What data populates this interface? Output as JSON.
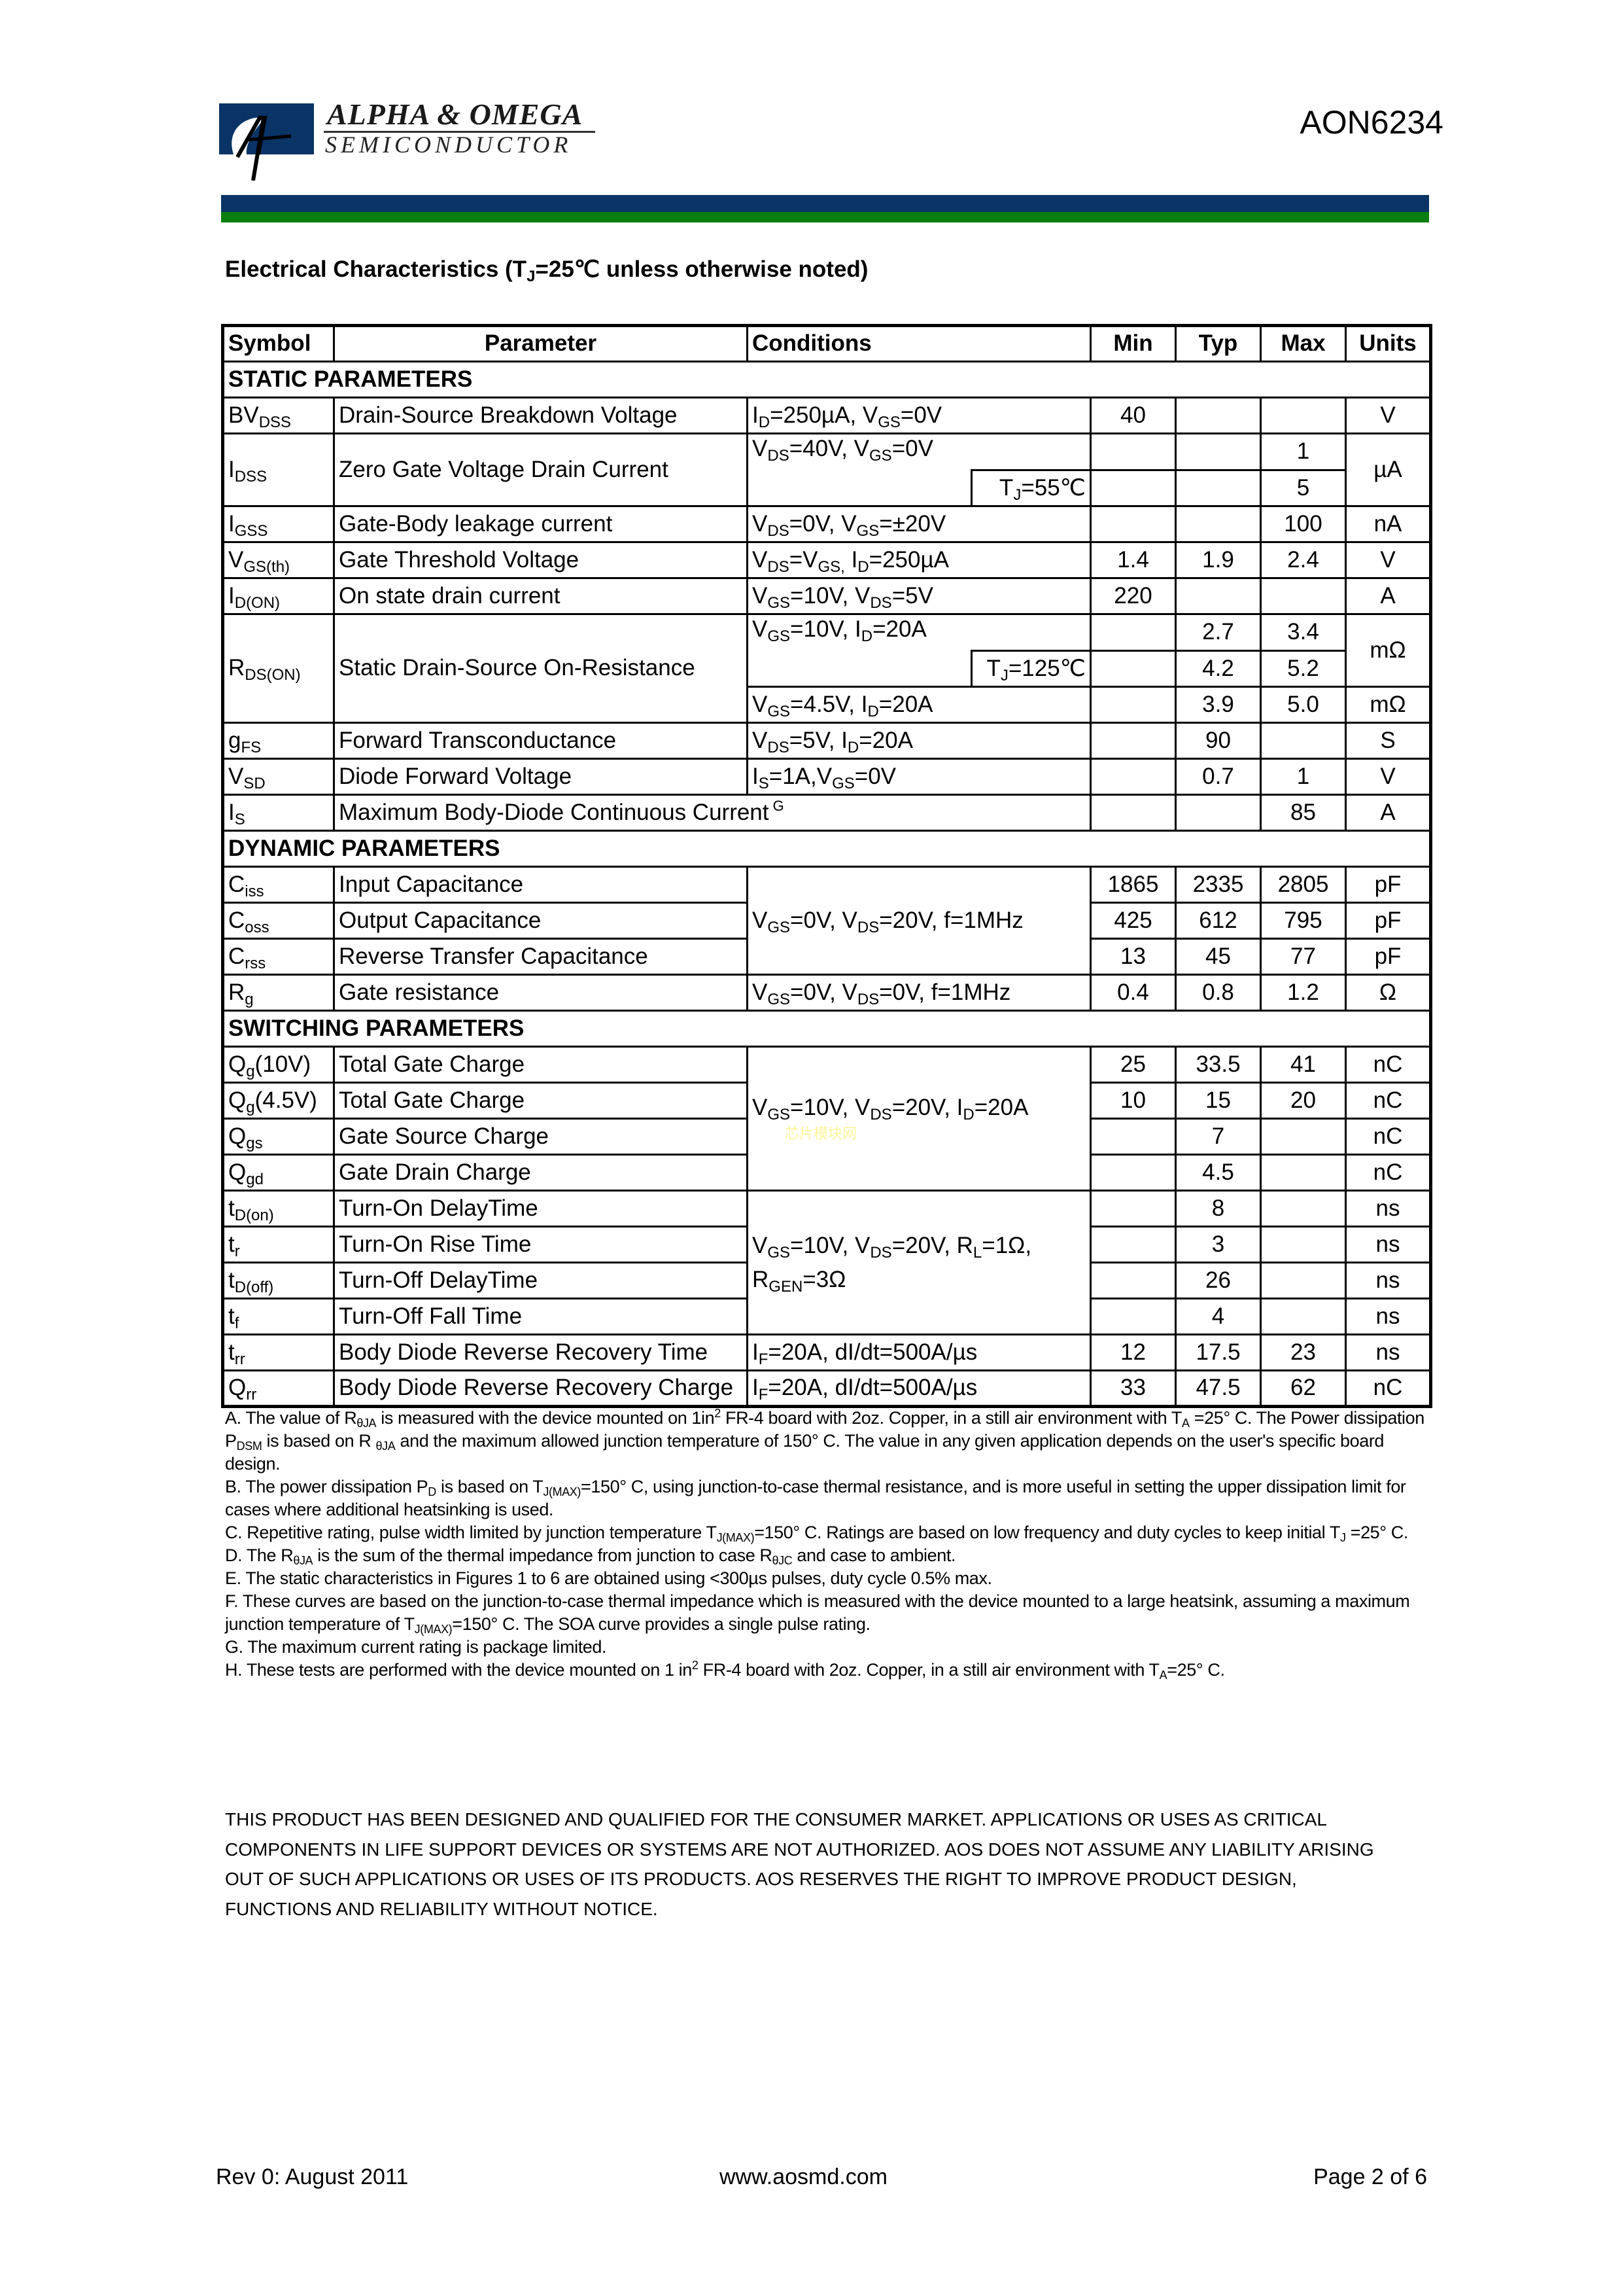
{
  "header": {
    "brand_line1": "ALPHA & OMEGA",
    "brand_line2": "SEMICONDUCTOR",
    "part_number": "AON6234",
    "colors": {
      "blue": "#0a3466",
      "green": "#0a7e0f"
    }
  },
  "title": [
    "Electrical Characteristics (T",
    {
      "sub": "J"
    },
    "=25℃ unless otherwise noted)"
  ],
  "table": {
    "headers": {
      "symbol": "Symbol",
      "parameter": "Parameter",
      "conditions": "Conditions",
      "min": "Min",
      "typ": "Typ",
      "max": "Max",
      "units": "Units"
    },
    "sections": {
      "static": "STATIC PARAMETERS",
      "dynamic": "DYNAMIC PARAMETERS",
      "switching": "SWITCHING PARAMETERS"
    },
    "static": [
      {
        "symbol": [
          "BV",
          {
            "sub": "DSS"
          }
        ],
        "parameter": "Drain-Source Breakdown Voltage",
        "conditions": [
          "I",
          {
            "sub": "D"
          },
          "=250µA, V",
          {
            "sub": "GS"
          },
          "=0V"
        ],
        "min": "40",
        "typ": "",
        "max": "",
        "units": "V"
      },
      {
        "symbol": [
          "I",
          {
            "sub": "DSS"
          }
        ],
        "parameter": "Zero Gate Voltage Drain Current",
        "conditions": [
          "V",
          {
            "sub": "DS"
          },
          "=40V, V",
          {
            "sub": "GS"
          },
          "=0V"
        ],
        "min": "",
        "typ": "",
        "max": "1",
        "units": "µA",
        "sub_condition": [
          "T",
          {
            "sub": "J"
          },
          "=55℃"
        ],
        "sub_min": "",
        "sub_typ": "",
        "sub_max": "5"
      },
      {
        "symbol": [
          "I",
          {
            "sub": "GSS"
          }
        ],
        "parameter": "Gate-Body leakage current",
        "conditions": [
          "V",
          {
            "sub": "DS"
          },
          "=0V, V",
          {
            "sub": "GS"
          },
          "=±20V"
        ],
        "min": "",
        "typ": "",
        "max": "100",
        "units": "nA"
      },
      {
        "symbol": [
          "V",
          {
            "sub": "GS(th)"
          }
        ],
        "parameter": "Gate Threshold Voltage",
        "conditions": [
          "V",
          {
            "sub": "DS"
          },
          "=V",
          {
            "sub": "GS,"
          },
          " I",
          {
            "sub": "D"
          },
          "=250µA"
        ],
        "min": "1.4",
        "typ": "1.9",
        "max": "2.4",
        "units": "V"
      },
      {
        "symbol": [
          "I",
          {
            "sub": "D(ON)"
          }
        ],
        "parameter": "On state drain current",
        "conditions": [
          "V",
          {
            "sub": "GS"
          },
          "=10V, V",
          {
            "sub": "DS"
          },
          "=5V"
        ],
        "min": "220",
        "typ": "",
        "max": "",
        "units": "A"
      },
      {
        "symbol": [
          "R",
          {
            "sub": "DS(ON)"
          }
        ],
        "parameter": "Static Drain-Source On-Resistance",
        "conditions": [
          "V",
          {
            "sub": "GS"
          },
          "=10V, I",
          {
            "sub": "D"
          },
          "=20A"
        ],
        "min": "",
        "typ": "2.7",
        "max": "3.4",
        "units": "mΩ",
        "sub_condition": [
          "T",
          {
            "sub": "J"
          },
          "=125℃"
        ],
        "sub_min": "",
        "sub_typ": "4.2",
        "sub_max": "5.2",
        "third_condition": [
          "V",
          {
            "sub": "GS"
          },
          "=4.5V, I",
          {
            "sub": "D"
          },
          "=20A"
        ],
        "third_min": "",
        "third_typ": "3.9",
        "third_max": "5.0",
        "third_units": "mΩ"
      },
      {
        "symbol": [
          "g",
          {
            "sub": "FS"
          }
        ],
        "parameter": "Forward Transconductance",
        "conditions": [
          "V",
          {
            "sub": "DS"
          },
          "=5V, I",
          {
            "sub": "D"
          },
          "=20A"
        ],
        "min": "",
        "typ": "90",
        "max": "",
        "units": "S"
      },
      {
        "symbol": [
          "V",
          {
            "sub": "SD"
          }
        ],
        "parameter": "Diode Forward Voltage",
        "conditions": [
          "I",
          {
            "sub": "S"
          },
          "=1A,V",
          {
            "sub": "GS"
          },
          "=0V"
        ],
        "min": "",
        "typ": "0.7",
        "max": "1",
        "units": "V"
      },
      {
        "symbol": [
          "I",
          {
            "sub": "S"
          }
        ],
        "parameter": [
          "Maximum Body-Diode Continuous Current",
          {
            "sup": " G"
          }
        ],
        "min": "",
        "typ": "",
        "max": "85",
        "units": "A"
      }
    ],
    "dynamic": {
      "shared_condition": [
        "V",
        {
          "sub": "GS"
        },
        "=0V, V",
        {
          "sub": "DS"
        },
        "=20V, f=1MHz"
      ],
      "rows": [
        {
          "symbol": [
            "C",
            {
              "sub": "iss"
            }
          ],
          "parameter": "Input Capacitance",
          "min": "1865",
          "typ": "2335",
          "max": "2805",
          "units": "pF"
        },
        {
          "symbol": [
            "C",
            {
              "sub": "oss"
            }
          ],
          "parameter": "Output Capacitance",
          "min": "425",
          "typ": "612",
          "max": "795",
          "units": "pF"
        },
        {
          "symbol": [
            "C",
            {
              "sub": "rss"
            }
          ],
          "parameter": "Reverse Transfer Capacitance",
          "min": "13",
          "typ": "45",
          "max": "77",
          "units": "pF"
        },
        {
          "symbol": [
            "R",
            {
              "sub": "g"
            }
          ],
          "parameter": "Gate resistance",
          "conditions": [
            "V",
            {
              "sub": "GS"
            },
            "=0V, V",
            {
              "sub": "DS"
            },
            "=0V, f=1MHz"
          ],
          "min": "0.4",
          "typ": "0.8",
          "max": "1.2",
          "units": "Ω"
        }
      ]
    },
    "switching": {
      "charge_condition": [
        "V",
        {
          "sub": "GS"
        },
        "=10V, V",
        {
          "sub": "DS"
        },
        "=20V, I",
        {
          "sub": "D"
        },
        "=20A"
      ],
      "watermark": "芯片模块网",
      "timing_condition_line1": [
        "V",
        {
          "sub": "GS"
        },
        "=10V, V",
        {
          "sub": "DS"
        },
        "=20V, R",
        {
          "sub": "L"
        },
        "=1Ω,"
      ],
      "timing_condition_line2": [
        "R",
        {
          "sub": "GEN"
        },
        "=3Ω"
      ],
      "charge_rows": [
        {
          "symbol": [
            "Q",
            {
              "sub": "g"
            },
            "(10V)"
          ],
          "parameter": "Total Gate Charge",
          "min": "25",
          "typ": "33.5",
          "max": "41",
          "units": "nC"
        },
        {
          "symbol": [
            "Q",
            {
              "sub": "g"
            },
            "(4.5V)"
          ],
          "parameter": "Total Gate Charge",
          "min": "10",
          "typ": "15",
          "max": "20",
          "units": "nC"
        },
        {
          "symbol": [
            "Q",
            {
              "sub": "gs"
            }
          ],
          "parameter": "Gate Source Charge",
          "min": "",
          "typ": "7",
          "max": "",
          "units": "nC"
        },
        {
          "symbol": [
            "Q",
            {
              "sub": "gd"
            }
          ],
          "parameter": "Gate Drain Charge",
          "min": "",
          "typ": "4.5",
          "max": "",
          "units": "nC"
        }
      ],
      "timing_rows": [
        {
          "symbol": [
            "t",
            {
              "sub": "D(on)"
            }
          ],
          "parameter": "Turn-On DelayTime",
          "min": "",
          "typ": "8",
          "max": "",
          "units": "ns"
        },
        {
          "symbol": [
            "t",
            {
              "sub": "r"
            }
          ],
          "parameter": "Turn-On Rise Time",
          "min": "",
          "typ": "3",
          "max": "",
          "units": "ns"
        },
        {
          "symbol": [
            "t",
            {
              "sub": "D(off)"
            }
          ],
          "parameter": "Turn-Off DelayTime",
          "min": "",
          "typ": "26",
          "max": "",
          "units": "ns"
        },
        {
          "symbol": [
            "t",
            {
              "sub": "f"
            }
          ],
          "parameter": "Turn-Off Fall Time",
          "min": "",
          "typ": "4",
          "max": "",
          "units": "ns"
        }
      ],
      "diode_rows": [
        {
          "symbol": [
            "t",
            {
              "sub": "rr"
            }
          ],
          "parameter": "Body Diode Reverse Recovery Time",
          "conditions": [
            "I",
            {
              "sub": "F"
            },
            "=20A, dI/dt=500A/µs"
          ],
          "min": "12",
          "typ": "17.5",
          "max": "23",
          "units": "ns"
        },
        {
          "symbol": [
            "Q",
            {
              "sub": "rr"
            }
          ],
          "parameter": "Body Diode Reverse Recovery Charge",
          "conditions": [
            "I",
            {
              "sub": "F"
            },
            "=20A, dI/dt=500A/µs"
          ],
          "min": "33",
          "typ": "47.5",
          "max": "62",
          "units": "nC"
        }
      ]
    }
  },
  "notes": [
    [
      "A. The value of R",
      {
        "sub": "θJA"
      },
      " is measured with the device mounted on 1in",
      {
        "sup": "2"
      },
      " FR-4 board with 2oz. Copper, in a still air environment with T",
      {
        "sub": "A"
      },
      " =25° C. The Power dissipation P",
      {
        "sub": "DSM"
      },
      " is based on R ",
      {
        "sub": "θJA"
      },
      " and the maximum allowed junction temperature of 150° C. The value in any given application depends on the user's specific board design."
    ],
    [
      "B. The power dissipation P",
      {
        "sub": "D"
      },
      " is based on T",
      {
        "sub": "J(MAX)"
      },
      "=150° C, using junction-to-case thermal resistance, and is more useful in setting the upper dissipation limit for cases where additional heatsinking is used."
    ],
    [
      "C. Repetitive rating, pulse width limited by junction temperature T",
      {
        "sub": "J(MAX)"
      },
      "=150° C. Ratings are based on low frequency and duty cycles to keep initial T",
      {
        "sub": "J"
      },
      " =25° C."
    ],
    [
      "D. The R",
      {
        "sub": "θJA"
      },
      " is the sum of the thermal impedance from junction to case R",
      {
        "sub": "θJC"
      },
      " and case to ambient."
    ],
    [
      "E. The static characteristics in Figures 1 to 6 are obtained using <300µs pulses, duty cycle 0.5% max."
    ],
    [
      "F. These curves are based on the junction-to-case thermal impedance which is measured with the device mounted to a large heatsink, assuming a maximum junction temperature of T",
      {
        "sub": "J(MAX)"
      },
      "=150° C. The SOA curve provides a single pulse rating."
    ],
    [
      "G. The maximum current rating is package limited."
    ],
    [
      "H. These tests are performed with the device mounted on 1 in",
      {
        "sup": "2"
      },
      " FR-4 board with 2oz. Copper, in a still air environment with T",
      {
        "sub": "A"
      },
      "=25° C."
    ]
  ],
  "disclaimer": [
    "THIS PRODUCT HAS BEEN DESIGNED AND QUALIFIED FOR THE CONSUMER MARKET. APPLICATIONS OR USES AS CRITICAL",
    "COMPONENTS IN LIFE SUPPORT DEVICES OR SYSTEMS ARE NOT AUTHORIZED. AOS DOES NOT ASSUME ANY LIABILITY ARISING",
    "OUT OF SUCH APPLICATIONS OR USES OF ITS PRODUCTS.  AOS RESERVES THE RIGHT TO IMPROVE PRODUCT DESIGN,",
    "FUNCTIONS AND RELIABILITY WITHOUT NOTICE."
  ],
  "footer": {
    "revision": "Rev 0: August 2011",
    "website": "www.aosmd.com",
    "page": "Page 2 of 6"
  }
}
